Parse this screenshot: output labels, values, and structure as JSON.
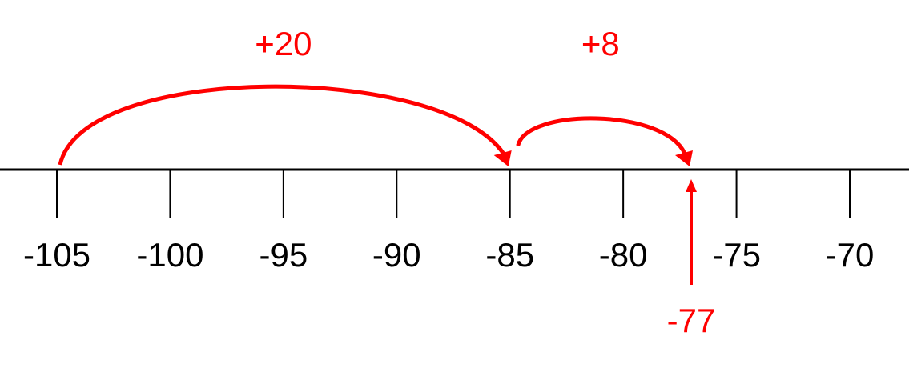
{
  "number_line": {
    "ticks": [
      -105,
      -100,
      -95,
      -90,
      -85,
      -80,
      -75,
      -70
    ],
    "jumps": [
      {
        "label": "+20",
        "from": -105,
        "to": -85
      },
      {
        "label": "+8",
        "from": -85,
        "to": -77
      }
    ],
    "marker": -77
  }
}
